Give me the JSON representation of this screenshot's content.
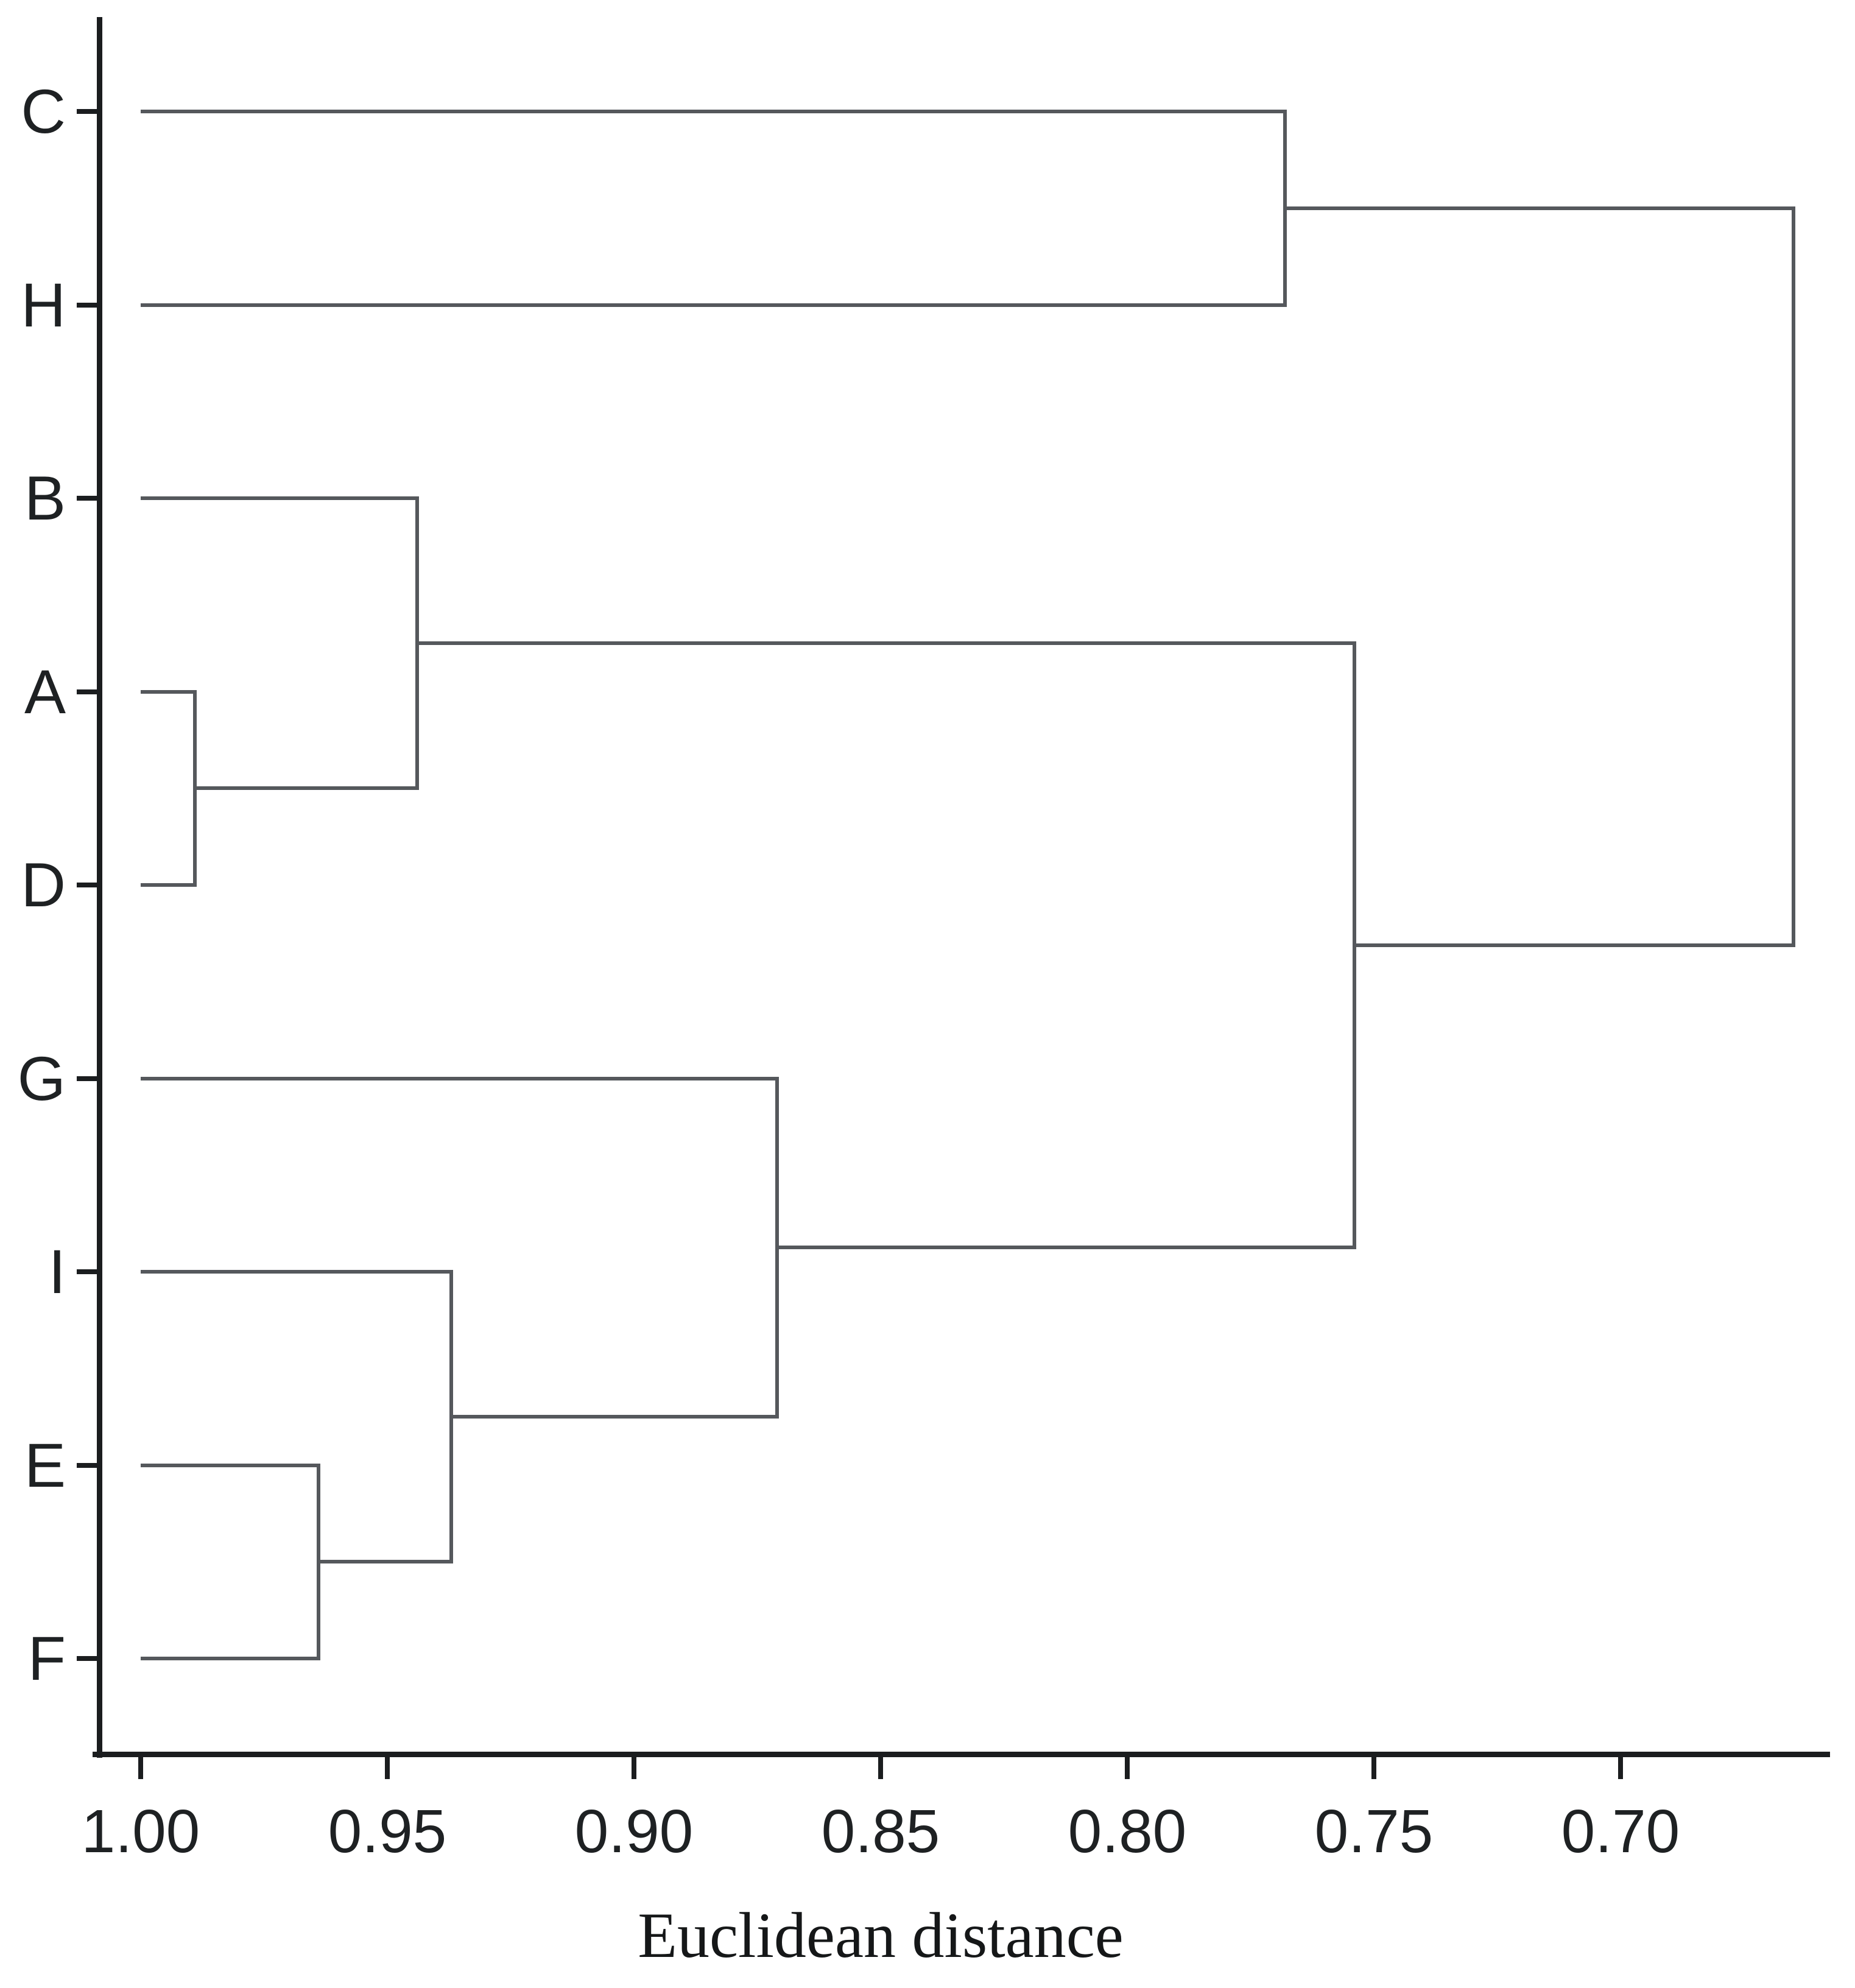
{
  "chart_data": {
    "type": "dendrogram",
    "orientation": "horizontal, root at right",
    "xlabel": "Euclidean distance",
    "leaves": [
      "C",
      "H",
      "B",
      "A",
      "D",
      "G",
      "I",
      "E",
      "F"
    ],
    "x_axis": {
      "tick_labels": [
        "1.00",
        "0.95",
        "0.90",
        "0.85",
        "0.80",
        "0.75",
        "0.70"
      ],
      "tick_values": [
        1.0,
        0.95,
        0.9,
        0.85,
        0.8,
        0.75,
        0.7
      ],
      "direction": "decreasing to the right",
      "leaf_start_value": 1.0,
      "grid": "off",
      "root_value": 0.665
    },
    "merges": [
      {
        "cluster": [
          "A",
          "D"
        ],
        "distance": 0.989
      },
      {
        "cluster": [
          "E",
          "F"
        ],
        "distance": 0.964
      },
      {
        "cluster": [
          "B",
          "A",
          "D"
        ],
        "distance": 0.944
      },
      {
        "cluster": [
          "I",
          "E",
          "F"
        ],
        "distance": 0.937
      },
      {
        "cluster": [
          "G",
          "I",
          "E",
          "F"
        ],
        "distance": 0.871
      },
      {
        "cluster": [
          "C",
          "H"
        ],
        "distance": 0.768
      },
      {
        "cluster": [
          "B",
          "A",
          "D",
          "G",
          "I",
          "E",
          "F"
        ],
        "distance": 0.754
      },
      {
        "cluster": [
          "C",
          "H",
          "B",
          "A",
          "D",
          "G",
          "I",
          "E",
          "F"
        ],
        "distance": 0.665
      }
    ],
    "linkage_tree": {
      "d": 0.665,
      "children": [
        {
          "d": 0.768,
          "children": [
            {
              "leaf": "C"
            },
            {
              "leaf": "H"
            }
          ]
        },
        {
          "d": 0.754,
          "children": [
            {
              "d": 0.944,
              "children": [
                {
                  "leaf": "B"
                },
                {
                  "d": 0.989,
                  "children": [
                    {
                      "leaf": "A"
                    },
                    {
                      "leaf": "D"
                    }
                  ]
                }
              ]
            },
            {
              "d": 0.871,
              "children": [
                {
                  "leaf": "G"
                },
                {
                  "d": 0.937,
                  "children": [
                    {
                      "leaf": "I"
                    },
                    {
                      "d": 0.964,
                      "children": [
                        {
                          "leaf": "E"
                        },
                        {
                          "leaf": "F"
                        }
                      ]
                    }
                  ]
                }
              ]
            }
          ]
        }
      ]
    },
    "colors": {
      "tree_line": "#55585c",
      "axis_line": "#1b1d1f",
      "label_text": "#1e2123"
    }
  }
}
